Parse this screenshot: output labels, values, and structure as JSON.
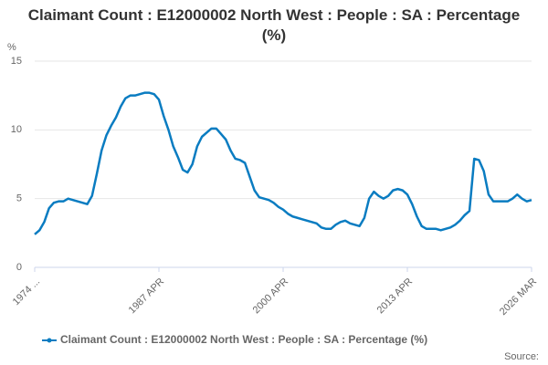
{
  "chart_data": {
    "type": "line",
    "title": "Claimant Count : E12000002 North West : People : SA : Percentage (%)",
    "y_label": "%",
    "source": "Source:",
    "categories": [
      "1974 ...",
      null,
      null,
      null,
      null,
      null,
      null,
      null,
      null,
      null,
      null,
      null,
      null,
      null,
      null,
      null,
      null,
      null,
      null,
      null,
      null,
      null,
      null,
      null,
      null,
      null,
      "1987 APR",
      null,
      null,
      null,
      null,
      null,
      null,
      null,
      null,
      null,
      null,
      null,
      null,
      null,
      null,
      null,
      null,
      null,
      null,
      null,
      null,
      null,
      null,
      null,
      null,
      null,
      "2000 APR",
      null,
      null,
      null,
      null,
      null,
      null,
      null,
      null,
      null,
      null,
      null,
      null,
      null,
      null,
      null,
      null,
      null,
      null,
      null,
      null,
      null,
      null,
      null,
      null,
      null,
      "2013 APR",
      null,
      null,
      null,
      null,
      null,
      null,
      null,
      null,
      null,
      null,
      null,
      null,
      null,
      null,
      null,
      null,
      null,
      null,
      null,
      null,
      null,
      null,
      null,
      null,
      null,
      "2026 MAR"
    ],
    "series": [
      {
        "name": "Claimant Count : E12000002 North West : People : SA : Percentage (%)",
        "color": "#0a7cc1",
        "values": [
          2.4,
          2.7,
          3.3,
          4.3,
          4.7,
          4.8,
          4.8,
          5.0,
          4.9,
          4.8,
          4.7,
          4.6,
          5.2,
          6.8,
          8.5,
          9.6,
          10.3,
          10.9,
          11.7,
          12.3,
          12.5,
          12.5,
          12.6,
          12.7,
          12.7,
          12.6,
          12.2,
          11.0,
          10.0,
          8.8,
          8.0,
          7.1,
          6.9,
          7.5,
          8.8,
          9.5,
          9.8,
          10.1,
          10.1,
          9.7,
          9.3,
          8.5,
          7.9,
          7.8,
          7.6,
          6.6,
          5.6,
          5.1,
          5.0,
          4.9,
          4.7,
          4.4,
          4.2,
          3.9,
          3.7,
          3.6,
          3.5,
          3.4,
          3.3,
          3.2,
          2.9,
          2.8,
          2.8,
          3.1,
          3.3,
          3.4,
          3.2,
          3.1,
          3.0,
          3.6,
          5.0,
          5.5,
          5.2,
          5.0,
          5.2,
          5.6,
          5.7,
          5.6,
          5.3,
          4.6,
          3.7,
          3.0,
          2.8,
          2.8,
          2.8,
          2.7,
          2.8,
          2.9,
          3.1,
          3.4,
          3.8,
          4.1,
          7.9,
          7.8,
          7.0,
          5.3,
          4.8,
          4.8,
          4.8,
          4.8,
          5.0,
          5.3,
          5.0,
          4.8,
          4.9
        ]
      }
    ],
    "ylim": [
      0,
      15
    ],
    "yticks": [
      0,
      5,
      10,
      15
    ],
    "grid": true
  }
}
